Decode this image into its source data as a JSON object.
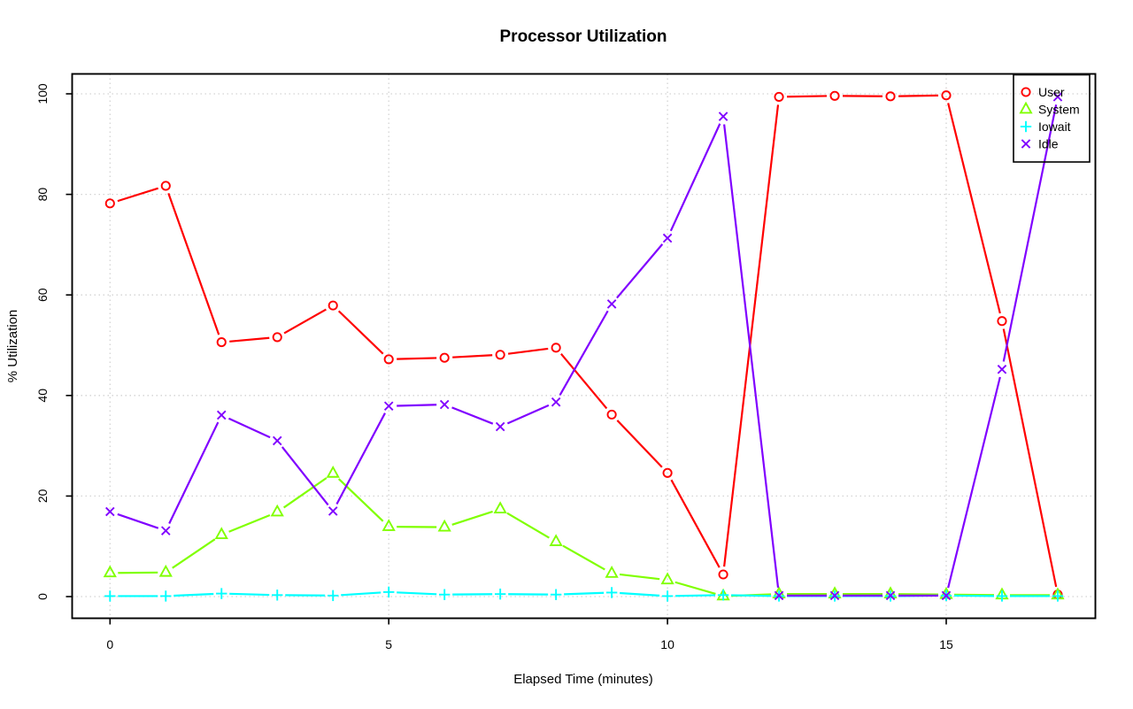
{
  "chart_data": {
    "type": "line",
    "title": "Processor Utilization",
    "xlabel": "Elapsed Time (minutes)",
    "ylabel": "% Utilization",
    "x": [
      0,
      1,
      2,
      3,
      4,
      5,
      6,
      7,
      8,
      9,
      10,
      11,
      12,
      13,
      14,
      15,
      16,
      17
    ],
    "xticks": [
      0,
      5,
      10,
      15
    ],
    "yticks": [
      0,
      20,
      40,
      60,
      80,
      100
    ],
    "xlim": [
      0,
      17
    ],
    "ylim": [
      0,
      100
    ],
    "grid": true,
    "grid_style": "dotted",
    "background": "#ffffff",
    "grid_color": "#d3d3d3",
    "axis_color": "#000000",
    "legend_position": "top-right",
    "series": [
      {
        "name": "User",
        "color": "#ff0000",
        "marker": "circle",
        "values": [
          78.2,
          81.7,
          50.6,
          51.6,
          57.9,
          47.2,
          47.5,
          48.1,
          49.5,
          36.2,
          24.6,
          4.4,
          99.4,
          99.6,
          99.5,
          99.7,
          54.8,
          0.4
        ]
      },
      {
        "name": "System",
        "color": "#80ff00",
        "marker": "triangle",
        "values": [
          4.7,
          4.8,
          12.3,
          16.8,
          24.5,
          13.9,
          13.8,
          17.4,
          10.9,
          4.6,
          3.3,
          0.1,
          0.5,
          0.5,
          0.5,
          0.4,
          0.3,
          0.3
        ]
      },
      {
        "name": "Iowait",
        "color": "#00ffff",
        "marker": "plus",
        "values": [
          0.1,
          0.1,
          0.6,
          0.3,
          0.2,
          0.9,
          0.4,
          0.5,
          0.4,
          0.8,
          0.1,
          0.3,
          0.1,
          0.1,
          0.1,
          0.2,
          0.1,
          0.1
        ]
      },
      {
        "name": "Idle",
        "color": "#8000ff",
        "marker": "x",
        "values": [
          16.9,
          13.1,
          36.1,
          31.0,
          17.0,
          37.9,
          38.2,
          33.8,
          38.7,
          58.2,
          71.3,
          95.5,
          0.2,
          0.2,
          0.2,
          0.2,
          45.2,
          99.4
        ]
      }
    ]
  }
}
